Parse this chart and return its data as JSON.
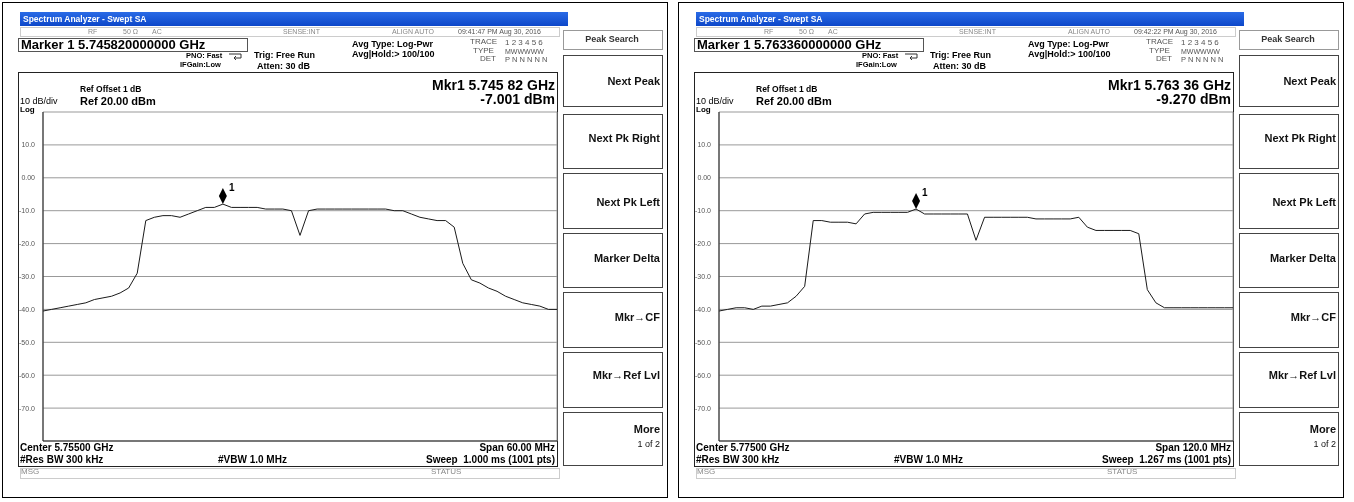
{
  "chart_data": [
    {
      "type": "line",
      "title": "Spectrum Analyzer - Swept SA",
      "categories": [
        null,
        null,
        null,
        null,
        null,
        null,
        null,
        null,
        null,
        null,
        null,
        null,
        null,
        null,
        null,
        null,
        null,
        null,
        null,
        null,
        null,
        null,
        null,
        null,
        null,
        null,
        null,
        null,
        null,
        null,
        null,
        null,
        null,
        null,
        null,
        null,
        null,
        null,
        null,
        null,
        null,
        null,
        null,
        null,
        null,
        null,
        null,
        null,
        null,
        null,
        null,
        null,
        null,
        null,
        null,
        null,
        null,
        null,
        null,
        null,
        null
      ],
      "series": [
        {
          "color": "#1a1a1a",
          "values": [
            -40.5,
            -40,
            -39.5,
            -39,
            -38.5,
            -38,
            -37,
            -36.5,
            -36,
            -35,
            -33.5,
            -29,
            -13,
            -12,
            -11.5,
            -11.5,
            -12,
            -11,
            -10,
            -9,
            -9,
            -8,
            -9,
            -9,
            -9,
            -9,
            -9.5,
            -9.5,
            -9.5,
            -10,
            -17.5,
            -10,
            -9.5,
            -9.5,
            -9.5,
            -9.5,
            -9.5,
            -9.5,
            -9.5,
            -9.5,
            -9.5,
            -10,
            -10,
            -11,
            -12,
            -12.5,
            -13,
            -13,
            -15,
            -26,
            -31,
            -32,
            -33.5,
            -34.5,
            -36,
            -37,
            -38,
            -38.5,
            -39,
            -40,
            -40
          ]
        }
      ],
      "ylim": [
        -80,
        20
      ],
      "yticks": [
        {
          "value": 20,
          "label": null
        },
        {
          "value": 10,
          "label": "10.0"
        },
        {
          "value": 0,
          "label": "0.00"
        },
        {
          "value": -10,
          "label": "-10.0"
        },
        {
          "value": -20,
          "label": "-20.0"
        },
        {
          "value": -30,
          "label": "-30.0"
        },
        {
          "value": -40,
          "label": "-40.0"
        },
        {
          "value": -50,
          "label": "-50.0"
        },
        {
          "value": -60,
          "label": "-60.0"
        },
        {
          "value": -70,
          "label": "-70.0"
        },
        {
          "value": -80,
          "label": null
        }
      ],
      "grid": true,
      "tick_labels": "y",
      "annotations": [
        "RF",
        "50 Ω",
        "AC",
        "SENSE:INT",
        "ALIGN AUTO",
        "09:41:47 PM Aug 30, 2016",
        "Marker 1 5.745820000000 GHz",
        "PNO: Fast",
        "IFGain:Low",
        "Trig: Free Run",
        "Atten: 30 dB",
        "Avg Type: Log-Pwr",
        "Avg|Hold:> 100/100",
        "TRACE",
        "1 2 3 4 5 6",
        "TYPE",
        "MWWWWW",
        "DET",
        "P N N N N N",
        "Ref Offset 1 dB",
        "10 dB/div",
        "Ref 20.00 dBm",
        "Log",
        "Mkr1 5.745 82 GHz",
        "-7.001 dBm",
        "Center 5.75500 GHz",
        "Span 60.00 MHz",
        "#Res BW 300 kHz",
        "#VBW 1.0 MHz",
        "Sweep  1.000 ms (1001 pts)",
        "MSG",
        "STATUS",
        "Peak Search",
        "Next Peak",
        "Next Pk Right",
        "Next Pk Left",
        "Marker Delta",
        "Mkr→CF",
        "Mkr→Ref Lvl",
        "More",
        "1 of 2",
        "1"
      ]
    },
    {
      "type": "line",
      "title": "Spectrum Analyzer - Swept SA",
      "categories": [
        null,
        null,
        null,
        null,
        null,
        null,
        null,
        null,
        null,
        null,
        null,
        null,
        null,
        null,
        null,
        null,
        null,
        null,
        null,
        null,
        null,
        null,
        null,
        null,
        null,
        null,
        null,
        null,
        null,
        null,
        null,
        null,
        null,
        null,
        null,
        null,
        null,
        null,
        null,
        null,
        null,
        null,
        null,
        null,
        null,
        null,
        null,
        null,
        null,
        null,
        null,
        null,
        null,
        null,
        null,
        null,
        null,
        null,
        null,
        null,
        null
      ],
      "series": [
        {
          "color": "#1a1a1a",
          "values": [
            -40.5,
            -40,
            -39.5,
            -39.5,
            -40,
            -39,
            -39,
            -38.5,
            -38,
            -36,
            -33,
            -13,
            -13,
            -13.5,
            -13.5,
            -13.5,
            -14,
            -11,
            -10.5,
            -10.5,
            -10.5,
            -10.5,
            -10.5,
            -9.5,
            -11,
            -11,
            -11,
            -11,
            -11,
            -11,
            -19,
            -12,
            -12,
            -12,
            -12,
            -12,
            -12,
            -12.5,
            -12.5,
            -12.5,
            -12.5,
            -12.5,
            -12,
            -15,
            -16,
            -16,
            -16,
            -16,
            -16,
            -17,
            -34,
            -38,
            -39.5,
            -39.5,
            -39.5,
            -39.5,
            -39.5,
            -39.5,
            -39.5,
            -39.5,
            -39.5
          ]
        }
      ],
      "ylim": [
        -80,
        20
      ],
      "yticks": [
        {
          "value": 20,
          "label": null
        },
        {
          "value": 10,
          "label": "10.0"
        },
        {
          "value": 0,
          "label": "0.00"
        },
        {
          "value": -10,
          "label": "-10.0"
        },
        {
          "value": -20,
          "label": "-20.0"
        },
        {
          "value": -30,
          "label": "-30.0"
        },
        {
          "value": -40,
          "label": "-40.0"
        },
        {
          "value": -50,
          "label": "-50.0"
        },
        {
          "value": -60,
          "label": "-60.0"
        },
        {
          "value": -70,
          "label": "-70.0"
        },
        {
          "value": -80,
          "label": null
        }
      ],
      "grid": true,
      "tick_labels": "y",
      "annotations": [
        "RF",
        "50 Ω",
        "AC",
        "SENSE:INT",
        "ALIGN AUTO",
        "09:42:22 PM Aug 30, 2016",
        "Marker 1 5.763360000000 GHz",
        "PNO: Fast",
        "IFGain:Low",
        "Trig: Free Run",
        "Atten: 30 dB",
        "Avg Type: Log-Pwr",
        "Avg|Hold:> 100/100",
        "TRACE",
        "1 2 3 4 5 6",
        "TYPE",
        "MWWWWW",
        "DET",
        "P N N N N N",
        "Ref Offset 1 dB",
        "10 dB/div",
        "Ref 20.00 dBm",
        "Log",
        "Mkr1 5.763 36 GHz",
        "-9.270 dBm",
        "Center 5.77500 GHz",
        "Span 120.0 MHz",
        "#Res BW 300 kHz",
        "#VBW 1.0 MHz",
        "Sweep  1.267 ms (1001 pts)",
        "MSG",
        "STATUS",
        "Peak Search",
        "Next Peak",
        "Next Pk Right",
        "Next Pk Left",
        "Marker Delta",
        "Mkr→CF",
        "Mkr→Ref Lvl",
        "More",
        "1 of 2",
        "1"
      ]
    }
  ]
}
